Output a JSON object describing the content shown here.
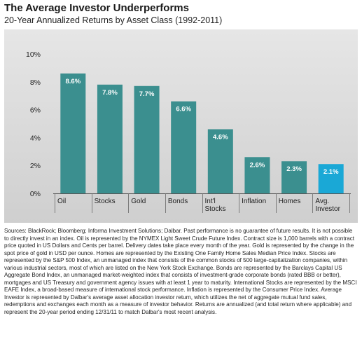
{
  "title": "The Average Investor Underperforms",
  "subtitle": "20-Year Annualized Returns by Asset Class (1992-2011)",
  "chart_data": {
    "type": "bar",
    "categories": [
      "Oil",
      "Stocks",
      "Gold",
      "Bonds",
      "Int'l Stocks",
      "Inflation",
      "Homes",
      "Avg. Investor"
    ],
    "category_lines": [
      [
        "Oil"
      ],
      [
        "Stocks"
      ],
      [
        "Gold"
      ],
      [
        "Bonds"
      ],
      [
        "Int'l",
        "Stocks"
      ],
      [
        "Inflation"
      ],
      [
        "Homes"
      ],
      [
        "Avg.",
        "Investor"
      ]
    ],
    "values": [
      8.6,
      7.8,
      7.7,
      6.6,
      4.6,
      2.6,
      2.3,
      2.1
    ],
    "data_labels": [
      "8.6%",
      "7.8%",
      "7.7%",
      "6.6%",
      "4.6%",
      "2.6%",
      "2.3%",
      "2.1%"
    ],
    "y_ticks": [
      0,
      2,
      4,
      6,
      8,
      10
    ],
    "y_tick_labels": [
      "0%",
      "2%",
      "4%",
      "6%",
      "8%",
      "10%"
    ],
    "ylim": [
      0,
      10
    ],
    "grid": false,
    "colors": {
      "bar": "#3b8f8f",
      "highlight": "#1aa8d6"
    },
    "highlight_index": 7
  },
  "footnote": "Sources: BlackRock; Bloomberg; Informa Investment Solutions; Dalbar. Past performance is no guarantee of future results. It is not possible to directly invest in an index. Oil is represented by the NYMEX Light Sweet Crude Future Index. Contract size is 1,000 barrels with a contract price quoted in US Dollars and Cents per barrel. Delivery dates take place every month of the year. Gold is represented by the change in the spot price of gold in USD per ounce. Homes are represented by the Existing One Family Home Sales Median Price Index. Stocks are represented by the S&P 500 Index, an unmanaged index that consists of the common stocks of 500 large-capitalization companies, within various industrial sectors, most of which are listed on the New York Stock Exchange. Bonds are represented by the Barclays Capital US Aggregate Bond Index, an unmanaged market-weighted index that consists of investment-grade corporate bonds (rated BBB or better), mortgages and US Treasury and government agency issues with at least 1 year to maturity. International Stocks are represented by the MSCI EAFE Index, a broad-based measure of international stock performance. Inflation is represented by the Consumer Price Index. Average Investor is represented by Dalbar's average asset allocation investor return, which utilizes the net of aggregate mutual fund sales, redemptions and exchanges each month as a measure of investor behavior. Returns are annualized (and total return where applicable) and represent the 20-year period ending 12/31/11 to match Dalbar's most recent analysis."
}
